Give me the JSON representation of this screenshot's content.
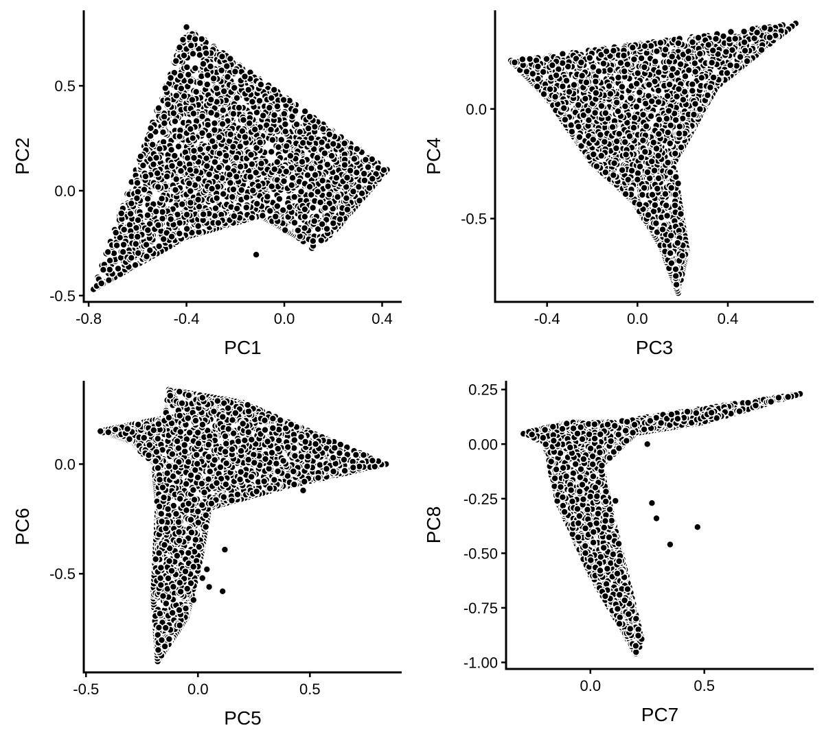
{
  "chart_data": [
    {
      "type": "scatter",
      "xlabel": "PC1",
      "ylabel": "PC2",
      "xlim": [
        -0.82,
        0.48
      ],
      "ylim": [
        -0.53,
        0.86
      ],
      "xticks": [
        -0.8,
        -0.4,
        0.0,
        0.4
      ],
      "xtick_labels": [
        "-0.8",
        "-0.4",
        "0.0",
        "0.4"
      ],
      "yticks": [
        -0.5,
        0.0,
        0.5
      ],
      "ytick_labels": [
        "-0.5",
        "0.0",
        "0.5"
      ],
      "grid": false,
      "legend": "none",
      "point_color": "#000000",
      "point_edge_color": "#ffffff",
      "shape": {
        "polygon": [
          [
            -0.78,
            -0.47
          ],
          [
            -0.4,
            0.78
          ],
          [
            0.42,
            0.1
          ],
          [
            0.2,
            -0.2
          ],
          [
            0.12,
            -0.28
          ],
          [
            0.05,
            -0.22
          ],
          [
            -0.1,
            -0.12
          ],
          [
            -0.4,
            -0.22
          ]
        ],
        "n_points": 2400,
        "seed": 11
      },
      "outliers": [
        [
          -0.115,
          -0.305
        ]
      ]
    },
    {
      "type": "scatter",
      "xlabel": "PC3",
      "ylabel": "PC4",
      "xlim": [
        -0.63,
        0.78
      ],
      "ylim": [
        -0.88,
        0.45
      ],
      "xticks": [
        -0.4,
        0.0,
        0.4
      ],
      "xtick_labels": [
        "-0.4",
        "0.0",
        "0.4"
      ],
      "yticks": [
        -0.5,
        0.0
      ],
      "ytick_labels": [
        "-0.5",
        "0.0"
      ],
      "grid": false,
      "legend": "none",
      "point_color": "#000000",
      "point_edge_color": "#ffffff",
      "shape": {
        "polygon": [
          [
            -0.56,
            0.22
          ],
          [
            0.7,
            0.39
          ],
          [
            0.35,
            0.1
          ],
          [
            0.16,
            -0.25
          ],
          [
            0.22,
            -0.65
          ],
          [
            0.18,
            -0.84
          ],
          [
            0.1,
            -0.62
          ],
          [
            -0.02,
            -0.42
          ],
          [
            -0.2,
            -0.25
          ],
          [
            -0.4,
            0.05
          ]
        ],
        "n_points": 2000,
        "seed": 23
      },
      "outliers": [
        [
          0.15,
          -0.36
        ],
        [
          0.17,
          -0.31
        ],
        [
          0.18,
          -0.34
        ],
        [
          0.03,
          -0.36
        ]
      ]
    },
    {
      "type": "scatter",
      "xlabel": "PC5",
      "ylabel": "PC6",
      "xlim": [
        -0.51,
        0.91
      ],
      "ylim": [
        -0.95,
        0.38
      ],
      "xticks": [
        -0.5,
        0.0,
        0.5
      ],
      "xtick_labels": [
        "-0.5",
        "0.0",
        "0.5"
      ],
      "yticks": [
        -0.5,
        0.0
      ],
      "ytick_labels": [
        "-0.5",
        "0.0"
      ],
      "grid": false,
      "legend": "none",
      "point_color": "#000000",
      "point_edge_color": "#ffffff",
      "shape": {
        "polygon": [
          [
            -0.44,
            0.15
          ],
          [
            -0.15,
            0.21
          ],
          [
            -0.13,
            0.34
          ],
          [
            0.2,
            0.28
          ],
          [
            0.84,
            0.0
          ],
          [
            0.4,
            -0.1
          ],
          [
            0.05,
            -0.2
          ],
          [
            0.0,
            -0.5
          ],
          [
            -0.05,
            -0.7
          ],
          [
            -0.18,
            -0.9
          ],
          [
            -0.2,
            -0.6
          ],
          [
            -0.18,
            -0.2
          ],
          [
            -0.2,
            0.0
          ],
          [
            -0.3,
            0.1
          ]
        ],
        "n_points": 2000,
        "seed": 37
      },
      "outliers": [
        [
          0.12,
          -0.39
        ],
        [
          0.11,
          -0.58
        ],
        [
          0.47,
          -0.12
        ],
        [
          0.04,
          -0.48
        ],
        [
          0.05,
          -0.56
        ],
        [
          0.02,
          -0.52
        ],
        [
          -0.02,
          -0.62
        ],
        [
          0.06,
          -0.18
        ]
      ]
    },
    {
      "type": "scatter",
      "xlabel": "PC7",
      "ylabel": "PC8",
      "xlim": [
        -0.37,
        0.98
      ],
      "ylim": [
        -1.03,
        0.29
      ],
      "xticks": [
        0.0,
        0.5
      ],
      "xtick_labels": [
        "0.0",
        "0.5"
      ],
      "yticks": [
        -1.0,
        -0.75,
        -0.5,
        -0.25,
        0.0,
        0.25
      ],
      "ytick_labels": [
        "-1.00",
        "-0.75",
        "-0.50",
        "-0.25",
        "0.00",
        "0.25"
      ],
      "grid": false,
      "legend": "none",
      "point_color": "#000000",
      "point_edge_color": "#ffffff",
      "shape": {
        "polygon": [
          [
            -0.3,
            0.05
          ],
          [
            -0.1,
            0.1
          ],
          [
            0.1,
            0.1
          ],
          [
            0.92,
            0.23
          ],
          [
            0.5,
            0.1
          ],
          [
            0.2,
            0.05
          ],
          [
            0.05,
            -0.1
          ],
          [
            0.1,
            -0.35
          ],
          [
            0.23,
            -0.91
          ],
          [
            0.2,
            -0.96
          ],
          [
            0.0,
            -0.6
          ],
          [
            -0.15,
            -0.25
          ],
          [
            -0.2,
            0.0
          ]
        ],
        "n_points": 1800,
        "seed": 53
      },
      "outliers": [
        [
          0.11,
          -0.26
        ],
        [
          0.27,
          -0.27
        ],
        [
          0.29,
          -0.34
        ],
        [
          0.35,
          -0.46
        ],
        [
          0.47,
          -0.38
        ],
        [
          0.25,
          0.0
        ]
      ]
    }
  ]
}
